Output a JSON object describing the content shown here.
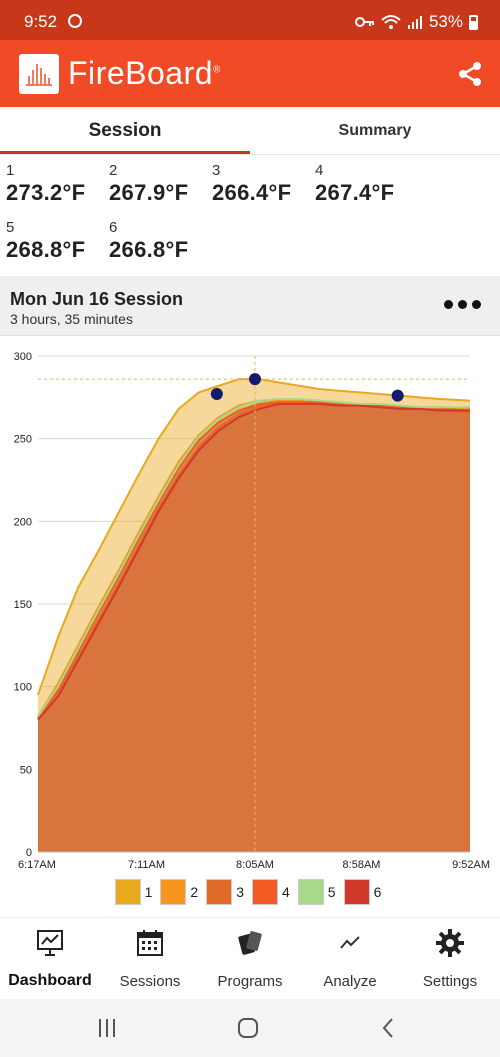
{
  "status_bar": {
    "time": "9:52",
    "battery": "53%"
  },
  "app": {
    "title": "FireBoard",
    "registered": "®"
  },
  "tabs": [
    {
      "label": "Session",
      "active": true
    },
    {
      "label": "Summary",
      "active": false
    }
  ],
  "probes": [
    {
      "num": "1",
      "temp": "273.2°F"
    },
    {
      "num": "2",
      "temp": "267.9°F"
    },
    {
      "num": "3",
      "temp": "266.4°F"
    },
    {
      "num": "4",
      "temp": "267.4°F"
    },
    {
      "num": "5",
      "temp": "268.8°F"
    },
    {
      "num": "6",
      "temp": "266.8°F"
    }
  ],
  "session": {
    "title": "Mon Jun 16 Session",
    "duration": "3 hours, 35 minutes"
  },
  "chart_data": {
    "type": "area",
    "y_ticks": [
      "0",
      "50",
      "100",
      "150",
      "200",
      "250",
      "300"
    ],
    "ylim": [
      0,
      300
    ],
    "x_ticks": [
      "6:17AM",
      "7:11AM",
      "8:05AM",
      "8:58AM",
      "9:52AM"
    ],
    "x_tick_minutes": [
      0,
      54,
      108,
      161,
      215
    ],
    "xlim": [
      0,
      215
    ],
    "reference_line": {
      "y": 286,
      "x_minutes": 108
    },
    "markers": [
      {
        "x_minutes": 89,
        "y": 277
      },
      {
        "x_minutes": 108,
        "y": 286
      },
      {
        "x_minutes": 179,
        "y": 276
      }
    ],
    "x_minutes": [
      0,
      10,
      20,
      30,
      40,
      50,
      60,
      70,
      80,
      90,
      100,
      110,
      120,
      130,
      140,
      150,
      160,
      170,
      180,
      190,
      200,
      215
    ],
    "series": [
      {
        "name": "1",
        "color": "#e8a820",
        "values": [
          95,
          130,
          160,
          182,
          205,
          228,
          250,
          268,
          278,
          282,
          286,
          286,
          284,
          282,
          280,
          279,
          278,
          277,
          276,
          275,
          274,
          273
        ]
      },
      {
        "name": "2",
        "color": "#f7961e",
        "values": [
          82,
          102,
          125,
          148,
          170,
          193,
          215,
          236,
          252,
          263,
          270,
          273,
          273,
          273,
          273,
          272,
          271,
          270,
          270,
          269,
          269,
          268
        ]
      },
      {
        "name": "3",
        "color": "#e06a28",
        "values": [
          80,
          96,
          118,
          140,
          162,
          185,
          208,
          228,
          245,
          257,
          265,
          270,
          272,
          272,
          272,
          271,
          270,
          269,
          269,
          268,
          267,
          266
        ]
      },
      {
        "name": "4",
        "color": "#f45a24",
        "values": [
          81,
          98,
          121,
          144,
          166,
          189,
          211,
          232,
          249,
          260,
          267,
          271,
          272,
          272,
          272,
          271,
          270,
          270,
          269,
          268,
          268,
          267
        ]
      },
      {
        "name": "5",
        "color": "#a6d98a",
        "values": [
          82,
          100,
          123,
          146,
          168,
          191,
          213,
          234,
          251,
          262,
          269,
          273,
          274,
          274,
          273,
          272,
          271,
          271,
          270,
          269,
          269,
          269
        ]
      },
      {
        "name": "6",
        "color": "#d03a2a",
        "values": [
          80,
          94,
          116,
          138,
          160,
          183,
          206,
          226,
          243,
          255,
          263,
          268,
          271,
          271,
          271,
          270,
          270,
          269,
          268,
          268,
          267,
          267
        ]
      }
    ]
  },
  "nav": [
    {
      "label": "Dashboard",
      "icon": "dashboard-icon",
      "active": true
    },
    {
      "label": "Sessions",
      "icon": "calendar-icon",
      "active": false
    },
    {
      "label": "Programs",
      "icon": "programs-icon",
      "active": false
    },
    {
      "label": "Analyze",
      "icon": "trend-icon",
      "active": false
    },
    {
      "label": "Settings",
      "icon": "gear-icon",
      "active": false
    }
  ],
  "colors": {
    "status_bar": "#c8371a",
    "app_bar": "#f04a26",
    "accent": "#c8371a"
  }
}
